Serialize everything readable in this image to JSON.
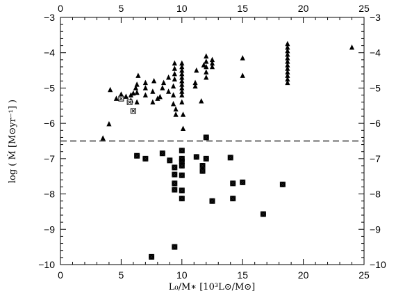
{
  "chart_data": {
    "type": "scatter",
    "title": "",
    "xlabel": "L₀/M∗ [10³L⊙/M⊙]",
    "ylabel": "log ( Ṁ [M⊙yr⁻¹] )",
    "xlim": [
      0,
      25
    ],
    "ylim": [
      -10,
      -3
    ],
    "x_ticks": [
      "0",
      "5",
      "10",
      "15",
      "20",
      "25"
    ],
    "y_ticks": [
      "−10",
      "−9",
      "−8",
      "−7",
      "−6",
      "−5",
      "−4",
      "−3"
    ],
    "reference_line": {
      "y": -6.5,
      "style": "dashed"
    },
    "series": [
      {
        "marker": "filled-triangle",
        "points": [
          [
            3.5,
            -6.42
          ],
          [
            4.0,
            -6.02
          ],
          [
            4.1,
            -5.05
          ],
          [
            4.6,
            -5.3
          ],
          [
            5.0,
            -5.18
          ],
          [
            5.0,
            -5.26
          ],
          [
            5.4,
            -5.24
          ],
          [
            5.8,
            -5.35
          ],
          [
            5.8,
            -5.2
          ],
          [
            6.0,
            -5.15
          ],
          [
            6.2,
            -5.0
          ],
          [
            6.3,
            -5.4
          ],
          [
            6.3,
            -5.13
          ],
          [
            6.3,
            -4.9
          ],
          [
            6.4,
            -4.65
          ],
          [
            7.0,
            -5.2
          ],
          [
            7.0,
            -5.0
          ],
          [
            7.0,
            -4.85
          ],
          [
            7.6,
            -5.4
          ],
          [
            7.6,
            -5.1
          ],
          [
            7.7,
            -4.8
          ],
          [
            8.0,
            -5.3
          ],
          [
            8.2,
            -5.25
          ],
          [
            8.4,
            -5.0
          ],
          [
            8.5,
            -4.85
          ],
          [
            8.9,
            -4.7
          ],
          [
            8.9,
            -5.1
          ],
          [
            9.3,
            -5.45
          ],
          [
            9.3,
            -5.2
          ],
          [
            9.3,
            -4.95
          ],
          [
            9.4,
            -4.75
          ],
          [
            9.4,
            -4.6
          ],
          [
            9.4,
            -4.45
          ],
          [
            9.4,
            -4.3
          ],
          [
            9.5,
            -5.6
          ],
          [
            9.5,
            -5.75
          ],
          [
            10.0,
            -5.4
          ],
          [
            10.0,
            -5.2
          ],
          [
            10.0,
            -5.1
          ],
          [
            10.0,
            -5.0
          ],
          [
            10.0,
            -4.9
          ],
          [
            10.0,
            -4.8
          ],
          [
            10.0,
            -4.7
          ],
          [
            10.0,
            -4.6
          ],
          [
            10.0,
            -4.5
          ],
          [
            10.0,
            -4.4
          ],
          [
            10.0,
            -4.3
          ],
          [
            10.1,
            -6.15
          ],
          [
            10.1,
            -5.75
          ],
          [
            11.1,
            -4.95
          ],
          [
            11.1,
            -4.85
          ],
          [
            11.2,
            -4.5
          ],
          [
            11.6,
            -5.37
          ],
          [
            11.8,
            -4.35
          ],
          [
            12.0,
            -4.1
          ],
          [
            12.0,
            -4.25
          ],
          [
            12.0,
            -4.4
          ],
          [
            12.0,
            -4.55
          ],
          [
            12.0,
            -4.7
          ],
          [
            12.5,
            -4.2
          ],
          [
            12.5,
            -4.3
          ],
          [
            12.5,
            -4.4
          ],
          [
            15.0,
            -4.15
          ],
          [
            15.0,
            -4.65
          ],
          [
            18.7,
            -3.75
          ],
          [
            18.7,
            -3.85
          ],
          [
            18.7,
            -3.95
          ],
          [
            18.7,
            -4.05
          ],
          [
            18.7,
            -4.15
          ],
          [
            18.7,
            -4.25
          ],
          [
            18.7,
            -4.35
          ],
          [
            18.7,
            -4.45
          ],
          [
            18.7,
            -4.55
          ],
          [
            18.7,
            -4.65
          ],
          [
            18.7,
            -4.75
          ],
          [
            18.7,
            -4.85
          ],
          [
            24.0,
            -3.85
          ]
        ]
      },
      {
        "marker": "open-square-star",
        "points": [
          [
            5.0,
            -5.3
          ],
          [
            5.7,
            -5.4
          ],
          [
            6.0,
            -5.65
          ]
        ]
      },
      {
        "marker": "filled-bowtie",
        "points": [
          [
            6.3,
            -6.92
          ],
          [
            7.0,
            -7.0
          ],
          [
            7.5,
            -9.78
          ],
          [
            8.4,
            -6.85
          ],
          [
            9.0,
            -7.05
          ],
          [
            9.4,
            -7.25
          ],
          [
            9.4,
            -7.45
          ],
          [
            9.4,
            -7.7
          ],
          [
            9.4,
            -7.88
          ],
          [
            9.4,
            -9.5
          ],
          [
            10.0,
            -6.77
          ],
          [
            10.0,
            -7.0
          ],
          [
            10.0,
            -7.08
          ],
          [
            10.0,
            -7.2
          ],
          [
            10.0,
            -7.47
          ],
          [
            10.0,
            -7.9
          ],
          [
            10.0,
            -8.13
          ],
          [
            11.2,
            -6.95
          ],
          [
            11.7,
            -7.2
          ],
          [
            11.7,
            -7.35
          ],
          [
            12.0,
            -6.4
          ],
          [
            12.0,
            -7.0
          ],
          [
            12.5,
            -8.2
          ],
          [
            14.0,
            -6.97
          ],
          [
            14.2,
            -7.7
          ],
          [
            14.2,
            -8.13
          ],
          [
            15.0,
            -7.67
          ],
          [
            16.7,
            -8.57
          ],
          [
            18.3,
            -7.73
          ]
        ]
      }
    ]
  }
}
